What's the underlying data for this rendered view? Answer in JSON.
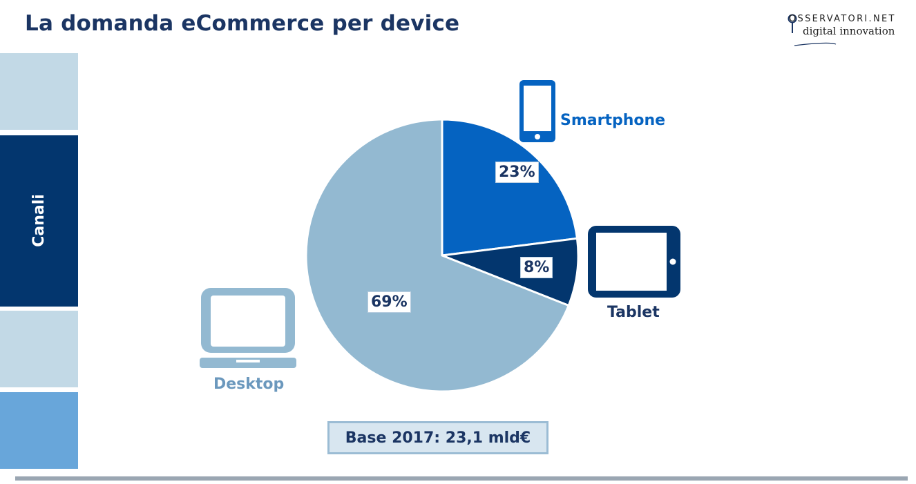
{
  "header": {
    "title": "La domanda eCommerce per device"
  },
  "logo": {
    "line1": "OSSERVATORI.NET",
    "line2": "digital innovation"
  },
  "sidebar": {
    "label": "Canali",
    "colors": [
      "#c2d9e6",
      "#03366e",
      "#c2d9e6",
      "#68a6da"
    ]
  },
  "chart_data": {
    "type": "pie",
    "slices": [
      {
        "name": "Smartphone",
        "value": 23,
        "label": "23%",
        "color": "#0563c1"
      },
      {
        "name": "Tablet",
        "value": 8,
        "label": "8%",
        "color": "#03366e"
      },
      {
        "name": "Desktop",
        "value": 69,
        "label": "69%",
        "color": "#93b9d1"
      }
    ],
    "note": "Base 2017: 23,1 mld€"
  },
  "icons": {
    "smartphone": "smartphone-icon",
    "tablet": "tablet-icon",
    "desktop": "laptop-icon"
  }
}
